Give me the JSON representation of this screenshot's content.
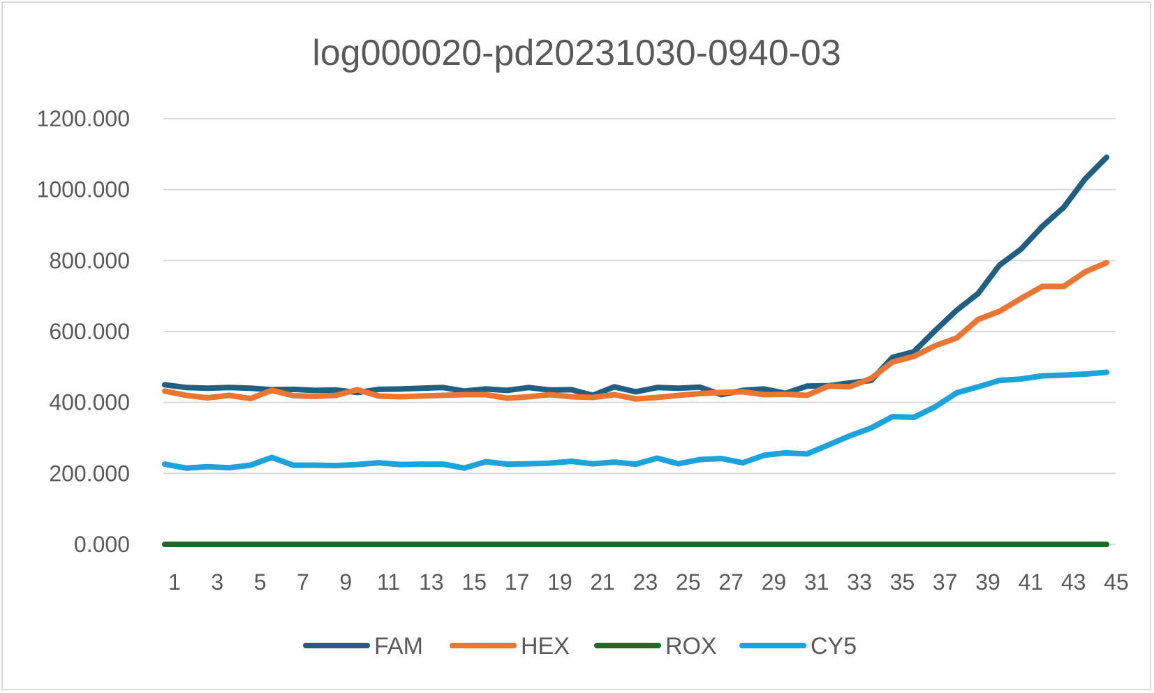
{
  "chart_data": {
    "type": "line",
    "title": "log000020-pd20231030-0940-03",
    "xlabel": "",
    "ylabel": "",
    "x": [
      1,
      2,
      3,
      4,
      5,
      6,
      7,
      8,
      9,
      10,
      11,
      12,
      13,
      14,
      15,
      16,
      17,
      18,
      19,
      20,
      21,
      22,
      23,
      24,
      25,
      26,
      27,
      28,
      29,
      30,
      31,
      32,
      33,
      34,
      35,
      36,
      37,
      38,
      39,
      40,
      41,
      42,
      43,
      44,
      45
    ],
    "x_tick_labels": [
      "1",
      "3",
      "5",
      "7",
      "9",
      "11",
      "13",
      "15",
      "17",
      "19",
      "21",
      "23",
      "25",
      "27",
      "29",
      "31",
      "33",
      "35",
      "37",
      "39",
      "41",
      "43",
      "45"
    ],
    "y_tick_labels": [
      "0.000",
      "200.000",
      "400.000",
      "600.000",
      "800.000",
      "1000.000",
      "1200.000"
    ],
    "ylim": [
      0,
      1200
    ],
    "grid": true,
    "legend_position": "bottom",
    "series": [
      {
        "name": "FAM",
        "color": "#1f5f84",
        "values": [
          450,
          442,
          440,
          442,
          440,
          436,
          437,
          434,
          435,
          428,
          437,
          438,
          440,
          442,
          432,
          438,
          434,
          442,
          435,
          436,
          420,
          444,
          430,
          442,
          440,
          443,
          422,
          434,
          438,
          426,
          446,
          447,
          455,
          462,
          527,
          543,
          603,
          660,
          707,
          787,
          832,
          896,
          950,
          1030,
          1091
        ]
      },
      {
        "name": "HEX",
        "color": "#ec7532",
        "values": [
          432,
          420,
          413,
          420,
          411,
          434,
          419,
          417,
          420,
          436,
          418,
          416,
          418,
          420,
          422,
          422,
          412,
          416,
          422,
          416,
          414,
          422,
          410,
          414,
          420,
          425,
          428,
          430,
          422,
          423,
          420,
          446,
          444,
          468,
          514,
          530,
          560,
          582,
          634,
          657,
          693,
          727,
          727,
          768,
          794
        ]
      },
      {
        "name": "ROX",
        "color": "#1d6b25",
        "values": [
          0,
          0,
          0,
          0,
          0,
          0,
          0,
          0,
          0,
          0,
          0,
          0,
          0,
          0,
          0,
          0,
          0,
          0,
          0,
          0,
          0,
          0,
          0,
          0,
          0,
          0,
          0,
          0,
          0,
          0,
          0,
          0,
          0,
          0,
          0,
          0,
          0,
          0,
          0,
          0,
          0,
          0,
          0,
          0,
          0
        ]
      },
      {
        "name": "CY5",
        "color": "#1aa3dc",
        "values": [
          226,
          215,
          219,
          216,
          223,
          245,
          223,
          223,
          222,
          225,
          230,
          225,
          226,
          226,
          215,
          233,
          226,
          227,
          229,
          234,
          227,
          232,
          226,
          243,
          227,
          239,
          242,
          230,
          251,
          258,
          255,
          280,
          306,
          328,
          360,
          358,
          388,
          427,
          444,
          462,
          466,
          475,
          477,
          480,
          485
        ]
      }
    ]
  }
}
